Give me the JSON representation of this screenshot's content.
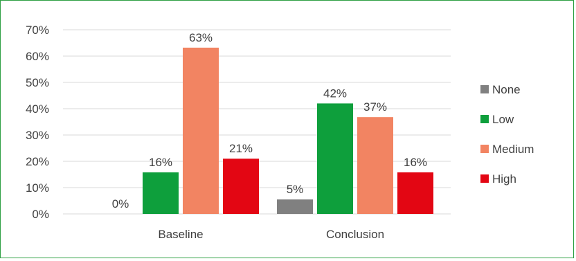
{
  "chart_data": {
    "type": "bar",
    "categories": [
      "Baseline",
      "Conclusion"
    ],
    "series": [
      {
        "name": "None",
        "color": "#808080",
        "values": [
          0,
          5
        ],
        "display_values": [
          0,
          5.5
        ]
      },
      {
        "name": "Low",
        "color": "#0e9f3c",
        "values": [
          16,
          42
        ],
        "display_values": [
          15.8,
          42
        ]
      },
      {
        "name": "Medium",
        "color": "#f28462",
        "values": [
          63,
          37
        ],
        "display_values": [
          63.2,
          36.8
        ]
      },
      {
        "name": "High",
        "color": "#e30613",
        "values": [
          21,
          16
        ],
        "display_values": [
          21,
          15.8
        ]
      }
    ],
    "data_labels": [
      [
        "0%",
        "5%"
      ],
      [
        "16%",
        "42%"
      ],
      [
        "63%",
        "37%"
      ],
      [
        "21%",
        "16%"
      ]
    ],
    "yticks": [
      "0%",
      "10%",
      "20%",
      "30%",
      "40%",
      "50%",
      "60%",
      "70%"
    ],
    "ylim": [
      0,
      70
    ],
    "y_unit": "%",
    "grid": true,
    "legend_position": "right",
    "frame_color": "#2ea043",
    "title": "",
    "xlabel": "",
    "ylabel": ""
  }
}
